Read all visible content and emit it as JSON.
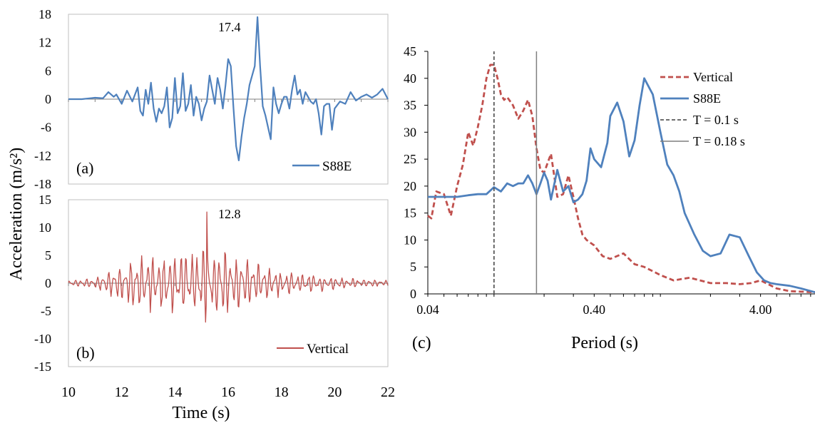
{
  "figure": {
    "ylabel_main": "Acceleration (m/s²)",
    "xlabel_time": "Time (s)"
  },
  "chart_data": [
    {
      "type": "line",
      "panel_label": "(a)",
      "xlabel": "",
      "ylabel": "",
      "xlim": [
        10,
        22
      ],
      "ylim": [
        -18,
        18
      ],
      "yticks": [
        18,
        12,
        6,
        0,
        -6,
        -12,
        -18
      ],
      "annotation": "17.4",
      "legend_position": "bottom-right",
      "series": [
        {
          "name": "S88E",
          "color": "#4F81BD",
          "x": [
            10.0,
            10.5,
            11.0,
            11.3,
            11.5,
            11.7,
            11.8,
            12.0,
            12.2,
            12.4,
            12.6,
            12.7,
            12.8,
            12.9,
            13.0,
            13.1,
            13.2,
            13.3,
            13.4,
            13.5,
            13.6,
            13.7,
            13.8,
            13.9,
            14.0,
            14.1,
            14.2,
            14.3,
            14.4,
            14.5,
            14.6,
            14.7,
            14.8,
            14.9,
            15.0,
            15.1,
            15.2,
            15.3,
            15.4,
            15.5,
            15.6,
            15.7,
            15.8,
            15.9,
            16.0,
            16.1,
            16.2,
            16.3,
            16.4,
            16.5,
            16.6,
            16.7,
            16.8,
            16.9,
            17.0,
            17.1,
            17.2,
            17.3,
            17.4,
            17.5,
            17.6,
            17.7,
            17.8,
            17.9,
            18.0,
            18.1,
            18.2,
            18.3,
            18.4,
            18.5,
            18.6,
            18.7,
            18.8,
            18.9,
            19.0,
            19.1,
            19.2,
            19.3,
            19.4,
            19.5,
            19.6,
            19.7,
            19.8,
            19.9,
            20.0,
            20.2,
            20.4,
            20.6,
            20.8,
            21.0,
            21.2,
            21.4,
            21.6,
            21.8,
            22.0
          ],
          "values": [
            0,
            0,
            0.3,
            0.2,
            1.5,
            0.5,
            1.0,
            -1.0,
            1.8,
            -0.5,
            2.5,
            -2.5,
            -3.5,
            2.0,
            -1.0,
            3.5,
            -2.0,
            -4.8,
            -2.0,
            -3.0,
            -1.5,
            2.5,
            -6.0,
            -4.0,
            4.5,
            -3.0,
            -1.5,
            5.5,
            -2.5,
            -1.0,
            3.0,
            -3.5,
            0.5,
            -1.0,
            -4.5,
            -2.0,
            -0.5,
            5.0,
            2.0,
            -1.0,
            4.5,
            2.0,
            -2.0,
            3.0,
            8.5,
            7.0,
            -2.0,
            -10.0,
            -13.0,
            -8.0,
            -4.0,
            -1.0,
            3.0,
            5.0,
            7.0,
            17.4,
            7.0,
            -1.5,
            -3.5,
            -6.0,
            -8.5,
            2.5,
            -1.0,
            -3.0,
            -1.0,
            0.5,
            0.5,
            -2.0,
            2.0,
            5.0,
            1.0,
            2.0,
            -1.0,
            1.5,
            0.5,
            -0.5,
            -1.0,
            0,
            -3.0,
            -7.5,
            -1.5,
            -1.0,
            -1.0,
            -6.5,
            -2.0,
            -0.5,
            -1.0,
            1.5,
            -0.3,
            0.5,
            1.0,
            0.3,
            1.0,
            2.2,
            0
          ]
        }
      ]
    },
    {
      "type": "line",
      "panel_label": "(b)",
      "xlabel": "Time (s)",
      "ylabel": "",
      "xlim": [
        10,
        22
      ],
      "ylim": [
        -15,
        15
      ],
      "xticks": [
        10,
        12,
        14,
        16,
        18,
        20,
        22
      ],
      "yticks": [
        15,
        10,
        5,
        0,
        -5,
        -10,
        -15
      ],
      "annotation": "12.8",
      "legend_position": "bottom-right",
      "series": [
        {
          "name": "Vertical",
          "color": "#C0504D",
          "envelope_t": [
            10.0,
            11.0,
            11.5,
            12.0,
            12.5,
            13.0,
            13.5,
            14.0,
            14.5,
            15.0,
            15.2,
            15.5,
            16.0,
            16.5,
            17.0,
            17.5,
            18.0,
            18.5,
            19.0,
            19.5,
            20.0,
            21.0,
            22.0
          ],
          "envelope_amp": [
            0.5,
            1.0,
            2.5,
            3.5,
            5.5,
            5.5,
            5.5,
            5.5,
            6.0,
            7.0,
            7.5,
            7.0,
            6.5,
            5.0,
            4.0,
            3.0,
            2.5,
            2.0,
            1.8,
            1.5,
            1.2,
            0.8,
            0.5
          ],
          "peak_time": 15.2,
          "peak_value": 12.8,
          "min_value": -7.8
        }
      ]
    },
    {
      "type": "line",
      "panel_label": "(c)",
      "xlabel": "Period (s)",
      "ylabel": "",
      "xscale": "log",
      "xlim": [
        0.04,
        8.5
      ],
      "ylim": [
        0,
        45
      ],
      "xticks": [
        "0.04",
        "0.40",
        "4.00"
      ],
      "yticks": [
        0,
        5,
        10,
        15,
        20,
        25,
        30,
        35,
        40,
        45
      ],
      "legend_position": "top-right",
      "series": [
        {
          "name": "Vertical",
          "color": "#C0504D",
          "style": "dashed",
          "x": [
            0.04,
            0.042,
            0.045,
            0.05,
            0.055,
            0.06,
            0.065,
            0.07,
            0.075,
            0.08,
            0.085,
            0.09,
            0.095,
            0.1,
            0.105,
            0.11,
            0.115,
            0.12,
            0.13,
            0.14,
            0.15,
            0.16,
            0.17,
            0.18,
            0.19,
            0.2,
            0.22,
            0.24,
            0.26,
            0.28,
            0.3,
            0.32,
            0.34,
            0.36,
            0.4,
            0.45,
            0.5,
            0.6,
            0.7,
            0.8,
            1.0,
            1.2,
            1.5,
            2.0,
            2.5,
            3.0,
            3.5,
            4.0,
            5.0,
            6.0,
            8.5
          ],
          "values": [
            14.5,
            14.0,
            19.0,
            18.5,
            14.5,
            20.0,
            24.0,
            30.0,
            27.5,
            31.0,
            35.0,
            40.0,
            42.5,
            42.5,
            40.0,
            37.0,
            36.0,
            36.5,
            35.0,
            32.5,
            34.0,
            36.0,
            33.0,
            27.0,
            23.0,
            22.5,
            26.0,
            18.0,
            18.5,
            22.0,
            18.0,
            14.0,
            11.0,
            10.0,
            9.0,
            7.0,
            6.5,
            7.5,
            5.5,
            5.0,
            3.5,
            2.5,
            3.0,
            2.0,
            2.0,
            1.8,
            2.0,
            2.5,
            1.0,
            0.5,
            0.3
          ]
        },
        {
          "name": "S88E",
          "color": "#4F81BD",
          "style": "solid",
          "x": [
            0.04,
            0.05,
            0.06,
            0.07,
            0.08,
            0.09,
            0.1,
            0.11,
            0.12,
            0.13,
            0.14,
            0.15,
            0.16,
            0.17,
            0.18,
            0.19,
            0.2,
            0.21,
            0.22,
            0.24,
            0.26,
            0.28,
            0.3,
            0.32,
            0.34,
            0.36,
            0.38,
            0.4,
            0.44,
            0.48,
            0.5,
            0.55,
            0.6,
            0.65,
            0.7,
            0.75,
            0.8,
            0.9,
            1.0,
            1.1,
            1.2,
            1.3,
            1.4,
            1.6,
            1.8,
            2.0,
            2.3,
            2.6,
            3.0,
            3.4,
            3.8,
            4.2,
            4.6,
            5.0,
            6.0,
            7.0,
            8.5
          ],
          "values": [
            18.0,
            18.0,
            18.0,
            18.3,
            18.5,
            18.5,
            19.8,
            19.0,
            20.5,
            20.0,
            20.5,
            20.5,
            22.0,
            20.5,
            18.5,
            20.5,
            22.5,
            21.0,
            17.5,
            23.0,
            19.0,
            20.0,
            17.0,
            17.5,
            18.5,
            21.0,
            27.0,
            25.0,
            23.5,
            28.0,
            33.0,
            35.5,
            32.0,
            25.5,
            28.5,
            35.0,
            40.0,
            37.0,
            30.0,
            24.0,
            22.0,
            19.0,
            15.0,
            11.0,
            8.0,
            7.0,
            7.5,
            11.0,
            10.5,
            7.0,
            4.0,
            2.5,
            2.0,
            1.8,
            1.5,
            1.0,
            0.3
          ]
        },
        {
          "name": "T = 0.1 s",
          "color": "#595959",
          "style": "dashed",
          "x": [
            0.1,
            0.1
          ],
          "values": [
            0,
            45
          ]
        },
        {
          "name": "T = 0.18 s",
          "color": "#7F7F7F",
          "style": "solid",
          "x": [
            0.18,
            0.18
          ],
          "values": [
            0,
            45
          ]
        }
      ]
    }
  ]
}
